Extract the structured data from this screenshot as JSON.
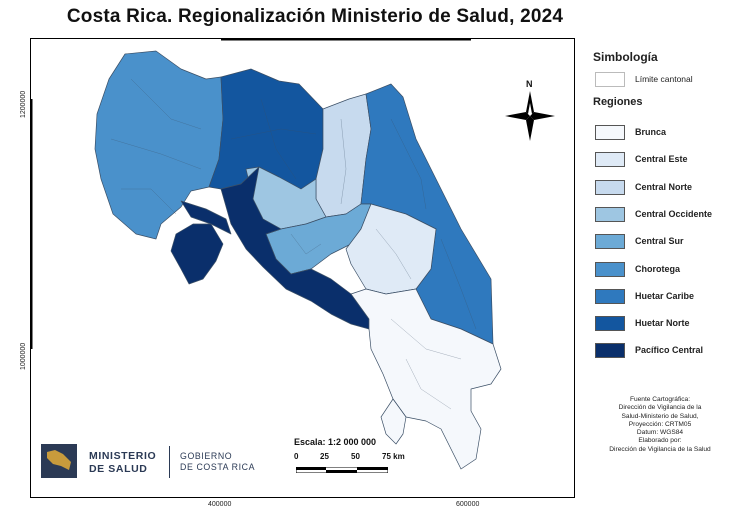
{
  "title": "Costa Rica. Regionalización Ministerio de Salud, 2024",
  "coordinates": {
    "y_top": "1200000",
    "y_bottom": "1000000",
    "x_left": "400000",
    "x_right": "600000"
  },
  "north_label": "N",
  "legend": {
    "symbology_title": "Simbología",
    "boundary_label": "Límite cantonal",
    "regions_title": "Regiones",
    "items": [
      {
        "label": "Brunca",
        "color": "#f5f8fc"
      },
      {
        "label": "Central Este",
        "color": "#dfeaf6"
      },
      {
        "label": "Central Norte",
        "color": "#c7daee"
      },
      {
        "label": "Central Occidente",
        "color": "#9ec6e2"
      },
      {
        "label": "Central Sur",
        "color": "#6caad6"
      },
      {
        "label": "Chorotega",
        "color": "#4a91cb"
      },
      {
        "label": "Huetar Caribe",
        "color": "#2f79be"
      },
      {
        "label": "Huetar Norte",
        "color": "#13569f"
      },
      {
        "label": "Pacífico Central",
        "color": "#0a2f6b"
      }
    ]
  },
  "scale": {
    "label": "Escala:  1:2 000 000",
    "ticks": [
      "0",
      "25",
      "50",
      "75 km"
    ]
  },
  "source_lines": [
    "Fuente Cartográfica:",
    "Dirección de Vigilancia de la",
    "Salud-Ministerio de Salud,",
    "Proyección: CRTM05",
    "Datum: WGS84",
    "Elaborado por:",
    "Dirección de Vigilancia de la Salud"
  ],
  "logo": {
    "line1": "MINISTERIO",
    "line2": "DE SALUD",
    "gov1": "GOBIERNO",
    "gov2": "DE COSTA RICA"
  }
}
